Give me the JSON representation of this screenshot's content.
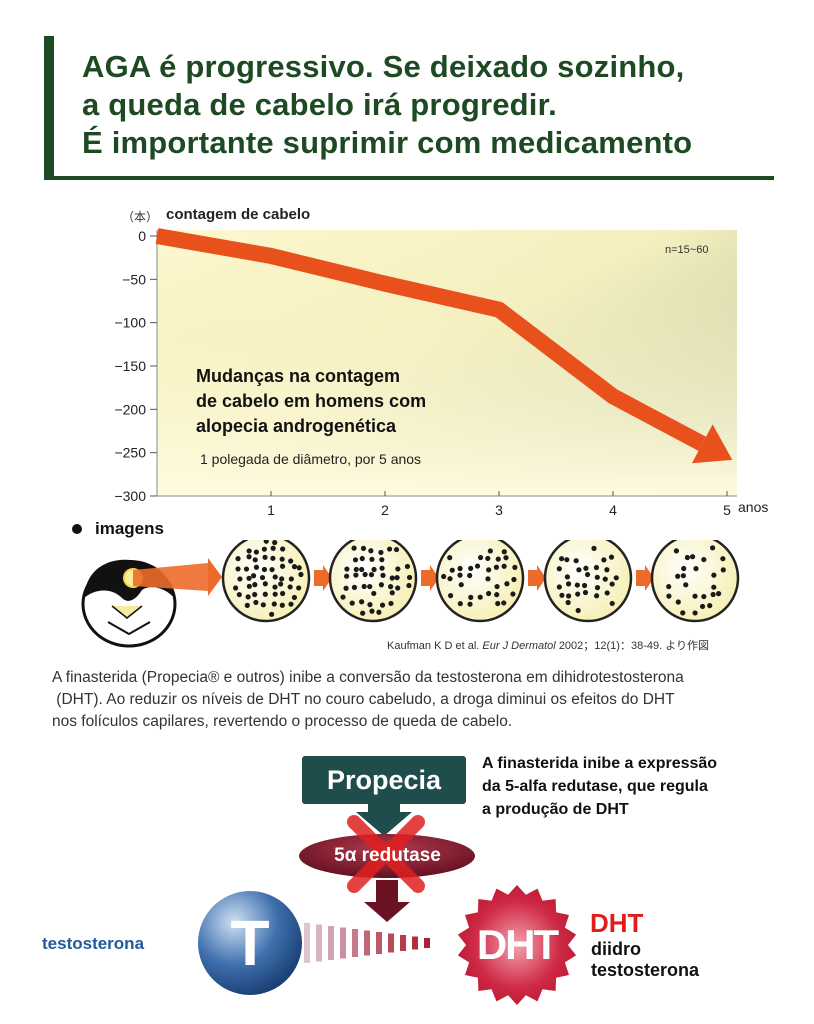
{
  "title": {
    "lines": [
      "AGA é progressivo. Se deixado sozinho,",
      "a queda de cabelo irá progredir.",
      "É importante suprimir com medicamento"
    ]
  },
  "chart": {
    "y_unit": "（本）",
    "y_label": "contagem de cabelo",
    "x_unit": "anos",
    "note": "n=15~60",
    "title_lines": [
      "Mudanças na contagem",
      "de cabelo em homens com",
      "alopecia androgenética"
    ],
    "subtitle": "1 polegada de diâmetro, por 5 anos"
  },
  "chart_data": {
    "type": "line",
    "x": [
      0,
      1,
      2,
      3,
      4,
      5
    ],
    "y": [
      0,
      -23,
      -55,
      -85,
      -185,
      -255
    ],
    "ylim": [
      -300,
      0
    ],
    "xlim": [
      0,
      5
    ],
    "yticks": [
      "0",
      "−50",
      "−100",
      "−150",
      "−200",
      "−250",
      "−300"
    ],
    "xticks": [
      "1",
      "2",
      "3",
      "4",
      "5"
    ],
    "ylabel": "contagem de cabelo",
    "xlabel": "anos",
    "grid": false,
    "colors": {
      "line": "#e8501c",
      "bg_top": "#95a888",
      "bg_bottom": "#fbf6c6"
    }
  },
  "images": {
    "label": "imagens",
    "densities": [
      1.0,
      0.85,
      0.72,
      0.6,
      0.48
    ]
  },
  "citation": {
    "author": "Kaufman K D et al.",
    "journal": "Eur J Dermatol",
    "rest": "2002；12(1)：38-49. より作図"
  },
  "paragraph": {
    "lines": [
      "A finasterida (Propecia® e outros) inibe a conversão da testosterona em dihidrotestosterona",
      " (DHT). Ao reduzir os níveis de DHT no couro cabeludo, a droga diminui os efeitos do DHT",
      "nos folículos capilares, revertendo o processo de queda de cabelo."
    ]
  },
  "diagram": {
    "drug": "Propecia",
    "enzyme": "5α redutase",
    "note_lines": [
      "A finasterida inibe a expressão",
      "da 5-alfa redutase, que regula",
      "a produção de DHT"
    ],
    "substrate_label": "testosterona",
    "substrate_letter": "T",
    "product_letter": "DHT",
    "product_abbr": "DHT",
    "product_full_lines": [
      "diidro",
      "testosterona"
    ],
    "colors": {
      "drug_box": "#1f4d4c",
      "enzyme": "#7a1628",
      "cross": "#e02020",
      "t_ball": "#2a5a9a",
      "dht_star": "#c8203a"
    }
  }
}
